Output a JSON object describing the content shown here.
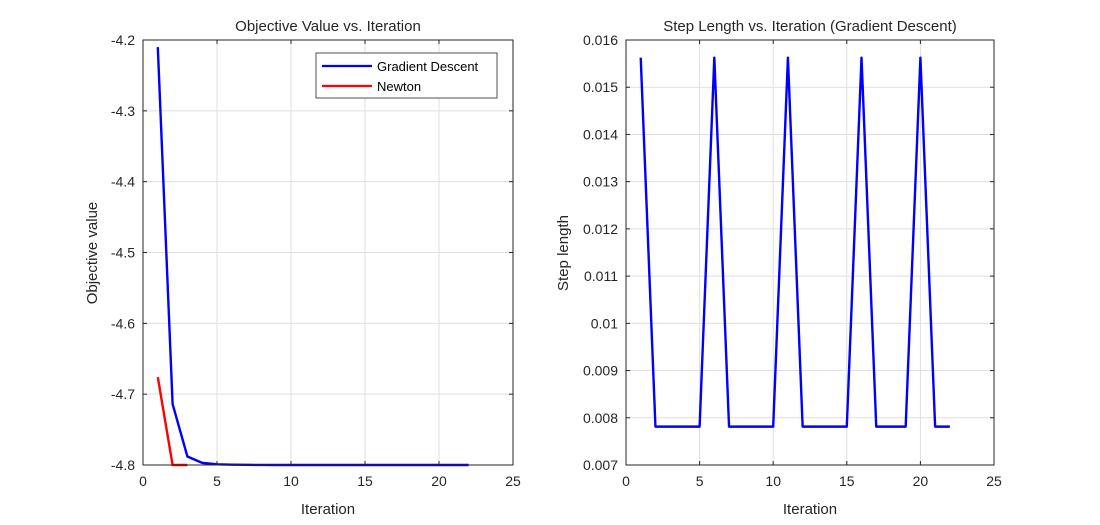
{
  "chart_data": [
    {
      "type": "line",
      "title": "Objective Value vs. Iteration",
      "xlabel": "Iteration",
      "ylabel": "Objective value",
      "xlim": [
        0,
        25
      ],
      "ylim": [
        -4.8,
        -4.2
      ],
      "xticks": [
        0,
        5,
        10,
        15,
        20,
        25
      ],
      "yticks": [
        -4.8,
        -4.7,
        -4.6,
        -4.5,
        -4.4,
        -4.3,
        -4.2
      ],
      "xtick_labels": [
        "0",
        "5",
        "10",
        "15",
        "20",
        "25"
      ],
      "ytick_labels": [
        "-4.8",
        "-4.7",
        "-4.6",
        "-4.5",
        "-4.4",
        "-4.3",
        "-4.2"
      ],
      "grid": true,
      "legend_position": "top-right",
      "series": [
        {
          "name": "Gradient Descent",
          "color": "#0000ff",
          "x": [
            1,
            2,
            3,
            4,
            5,
            6,
            7,
            8,
            9,
            10,
            11,
            12,
            13,
            14,
            15,
            16,
            17,
            18,
            19,
            20,
            21,
            22
          ],
          "y": [
            -4.21,
            -4.714,
            -4.788,
            -4.797,
            -4.799,
            -4.7995,
            -4.7998,
            -4.7999,
            -4.8,
            -4.8,
            -4.8,
            -4.8,
            -4.8,
            -4.8,
            -4.8,
            -4.8,
            -4.8,
            -4.8,
            -4.8,
            -4.8,
            -4.8,
            -4.8
          ]
        },
        {
          "name": "Newton",
          "color": "#ff0000",
          "x": [
            1,
            2,
            3
          ],
          "y": [
            -4.676,
            -4.8,
            -4.8
          ]
        }
      ]
    },
    {
      "type": "line",
      "title": "Step Length vs. Iteration (Gradient Descent)",
      "xlabel": "Iteration",
      "ylabel": "Step length",
      "xlim": [
        0,
        25
      ],
      "ylim": [
        0.007,
        0.016
      ],
      "xticks": [
        0,
        5,
        10,
        15,
        20,
        25
      ],
      "yticks": [
        0.007,
        0.008,
        0.009,
        0.01,
        0.011,
        0.012,
        0.013,
        0.014,
        0.015,
        0.016
      ],
      "xtick_labels": [
        "0",
        "5",
        "10",
        "15",
        "20",
        "25"
      ],
      "ytick_labels": [
        "0.007",
        "0.008",
        "0.009",
        "0.01",
        "0.011",
        "0.012",
        "0.013",
        "0.014",
        "0.015",
        "0.016"
      ],
      "grid": true,
      "series": [
        {
          "color": "#0000ff",
          "x": [
            1,
            2,
            3,
            4,
            5,
            6,
            7,
            8,
            9,
            10,
            11,
            12,
            13,
            14,
            15,
            16,
            17,
            18,
            19,
            20,
            21,
            22
          ],
          "y": [
            0.015625,
            0.0078125,
            0.0078125,
            0.0078125,
            0.0078125,
            0.015625,
            0.0078125,
            0.0078125,
            0.0078125,
            0.0078125,
            0.015625,
            0.0078125,
            0.0078125,
            0.0078125,
            0.0078125,
            0.015625,
            0.0078125,
            0.0078125,
            0.0078125,
            0.015625,
            0.0078125,
            0.0078125
          ]
        }
      ]
    }
  ]
}
